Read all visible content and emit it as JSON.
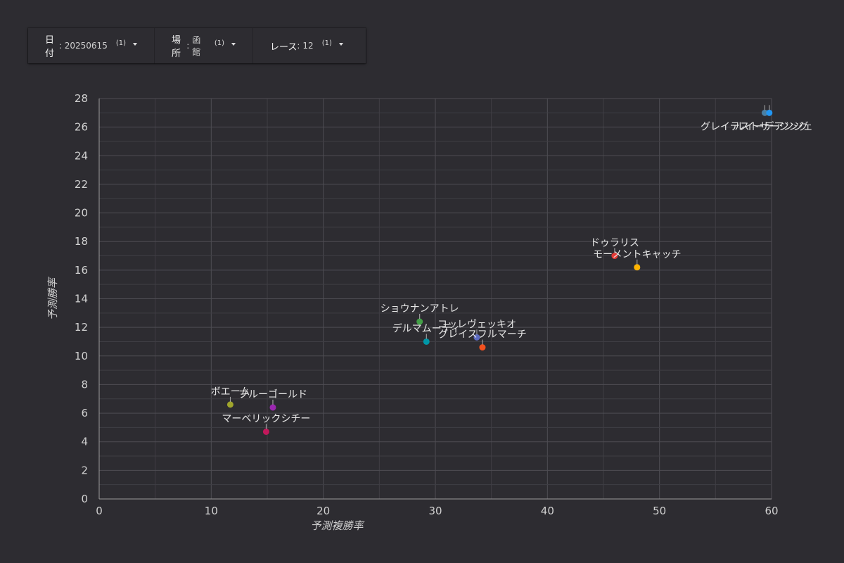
{
  "filters": [
    {
      "label": "日付",
      "value": "20250615",
      "count": "(1)",
      "width": 180
    },
    {
      "label": "場所",
      "value": "函館",
      "count": "(1)",
      "width": 140
    },
    {
      "label": "レース",
      "value": "12",
      "count": "(1)",
      "width": 160
    }
  ],
  "chart_data": {
    "type": "scatter",
    "xlabel": "予測複勝率",
    "ylabel": "予測勝率",
    "xlim": [
      0,
      60
    ],
    "ylim": [
      0,
      28
    ],
    "xticks": [
      0,
      10,
      20,
      30,
      40,
      50,
      60
    ],
    "yticks": [
      0,
      2,
      4,
      6,
      8,
      10,
      12,
      14,
      16,
      18,
      20,
      22,
      24,
      26,
      28
    ],
    "grid": true,
    "points": [
      {
        "name": "グレイテストサージング",
        "x": 59.4,
        "y": 27.0,
        "color": "#4a7fa3"
      },
      {
        "name": "ルイーデアンジェ",
        "x": 59.8,
        "y": 27.0,
        "color": "#2196f3"
      },
      {
        "name": "ドゥラリス",
        "x": 46.0,
        "y": 17.0,
        "color": "#e53935"
      },
      {
        "name": "モーメントキャッチ",
        "x": 48.0,
        "y": 16.2,
        "color": "#ffb300"
      },
      {
        "name": "ショウナンアトレ",
        "x": 28.6,
        "y": 12.4,
        "color": "#43a047"
      },
      {
        "name": "コッレヴェッキオ",
        "x": 33.7,
        "y": 11.3,
        "color": "#5c6bc0"
      },
      {
        "name": "デルマムーティ",
        "x": 29.2,
        "y": 11.0,
        "color": "#0097a7"
      },
      {
        "name": "グレイスフルマーチ",
        "x": 34.2,
        "y": 10.6,
        "color": "#f4511e"
      },
      {
        "name": "ボエーム",
        "x": 11.7,
        "y": 6.6,
        "color": "#a0a62c"
      },
      {
        "name": "ブルーゴールド",
        "x": 15.5,
        "y": 6.4,
        "color": "#9c27b0"
      },
      {
        "name": "マーベリックシチー",
        "x": 14.9,
        "y": 4.7,
        "color": "#c2185b"
      }
    ]
  }
}
